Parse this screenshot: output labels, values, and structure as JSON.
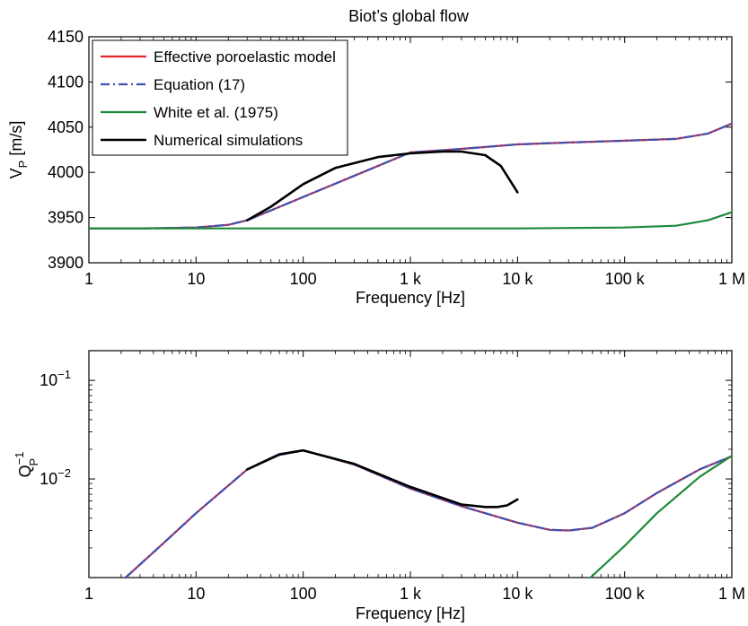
{
  "title": "Biot’s global flow",
  "colors": {
    "effective": "#e8252f",
    "equation": "#3a52b3",
    "white": "#1d8a3a",
    "numerical": "#000000"
  },
  "legend": [
    {
      "label": "Effective poroelastic model",
      "style": "solid",
      "color": "#e8252f"
    },
    {
      "label": "Equation (17)",
      "style": "dashdot",
      "color": "#3a52b3"
    },
    {
      "label": "White et al. (1975)",
      "style": "solid",
      "color": "#1d8a3a"
    },
    {
      "label": "Numerical simulations",
      "style": "solid",
      "color": "#000000"
    }
  ],
  "x_tick_labels": [
    "1",
    "10",
    "100",
    "1 k",
    "10 k",
    "100 k",
    "1 M"
  ],
  "top": {
    "xlabel": "Frequency [Hz]",
    "ylabel_main": "V",
    "ylabel_sub": "P",
    "ylabel_unit": " [m/s]",
    "y_tick_labels": [
      "3900",
      "3950",
      "4000",
      "4050",
      "4100",
      "4150"
    ]
  },
  "bottom": {
    "xlabel": "Frequency [Hz]",
    "ylabel_main": "Q",
    "ylabel_sup": "−1",
    "ylabel_sub": "P",
    "y_ticks": [
      {
        "base": "10",
        "exp": "−1"
      },
      {
        "base": "10",
        "exp": "−2"
      }
    ]
  },
  "chart_data": [
    {
      "type": "line",
      "title": "Biot’s global flow",
      "xlabel": "Frequency [Hz]",
      "ylabel": "V_P [m/s]",
      "xscale": "log",
      "xlim": [
        1,
        1000000
      ],
      "ylim": [
        3900,
        4150
      ],
      "legend_position": "top-left",
      "grid": false,
      "series": [
        {
          "name": "Effective poroelastic model",
          "color": "#e8252f",
          "x": [
            1,
            3,
            10,
            20,
            30,
            1000,
            3000,
            10000,
            30000,
            100000,
            300000,
            600000,
            1000000
          ],
          "y": [
            3938,
            3938,
            3939,
            3942,
            3947,
            4022,
            4026,
            4031,
            4033,
            4035,
            4037,
            4043,
            4054
          ]
        },
        {
          "name": "Equation (17)",
          "color": "#3a52b3",
          "x": [
            1,
            3,
            10,
            20,
            30,
            1000,
            3000,
            10000,
            30000,
            100000,
            300000,
            600000,
            1000000
          ],
          "y": [
            3938,
            3938,
            3939,
            3942,
            3947,
            4022,
            4026,
            4031,
            4033,
            4035,
            4037,
            4043,
            4054
          ]
        },
        {
          "name": "White et al. (1975)",
          "color": "#1d8a3a",
          "x": [
            1,
            10,
            100,
            1000,
            10000,
            100000,
            300000,
            600000,
            1000000
          ],
          "y": [
            3938,
            3938,
            3938,
            3938,
            3938,
            3939,
            3941,
            3947,
            3956
          ]
        },
        {
          "name": "Numerical simulations",
          "color": "#000000",
          "x": [
            30,
            50,
            100,
            200,
            500,
            1000,
            2000,
            3000,
            5000,
            7000,
            10000
          ],
          "y": [
            3947,
            3962,
            3987,
            4005,
            4017,
            4021,
            4023,
            4023,
            4019,
            4007,
            3978
          ]
        }
      ]
    },
    {
      "type": "line",
      "xlabel": "Frequency [Hz]",
      "ylabel": "Q_P^-1",
      "xscale": "log",
      "yscale": "log",
      "xlim": [
        1,
        1000000
      ],
      "ylim": [
        0.001,
        0.2
      ],
      "grid": false,
      "series": [
        {
          "name": "Effective poroelastic model",
          "color": "#e8252f",
          "x": [
            2.2,
            5,
            10,
            30,
            60,
            100,
            300,
            1000,
            3000,
            10000,
            20000,
            30000,
            50000,
            100000,
            200000,
            500000,
            1000000
          ],
          "y": [
            0.001,
            0.00225,
            0.0045,
            0.0125,
            0.0175,
            0.0195,
            0.014,
            0.008,
            0.0053,
            0.0036,
            0.00305,
            0.003,
            0.0032,
            0.0045,
            0.0072,
            0.0125,
            0.017
          ]
        },
        {
          "name": "Equation (17)",
          "color": "#3a52b3",
          "x": [
            2.2,
            5,
            10,
            30,
            60,
            100,
            300,
            1000,
            3000,
            10000,
            20000,
            30000,
            50000,
            100000,
            200000,
            500000,
            1000000
          ],
          "y": [
            0.001,
            0.00225,
            0.0045,
            0.0125,
            0.0175,
            0.0195,
            0.014,
            0.008,
            0.0053,
            0.0036,
            0.00305,
            0.003,
            0.0032,
            0.0045,
            0.0072,
            0.0125,
            0.017
          ]
        },
        {
          "name": "White et al. (1975)",
          "color": "#1d8a3a",
          "x": [
            48000,
            100000,
            200000,
            500000,
            1000000
          ],
          "y": [
            0.001,
            0.0021,
            0.0045,
            0.0105,
            0.0172
          ]
        },
        {
          "name": "Numerical simulations",
          "color": "#000000",
          "x": [
            30,
            60,
            100,
            300,
            1000,
            3000,
            5000,
            6500,
            8000,
            10000
          ],
          "y": [
            0.0125,
            0.0178,
            0.0195,
            0.0142,
            0.0083,
            0.0055,
            0.0052,
            0.0052,
            0.0054,
            0.0062
          ]
        }
      ]
    }
  ]
}
